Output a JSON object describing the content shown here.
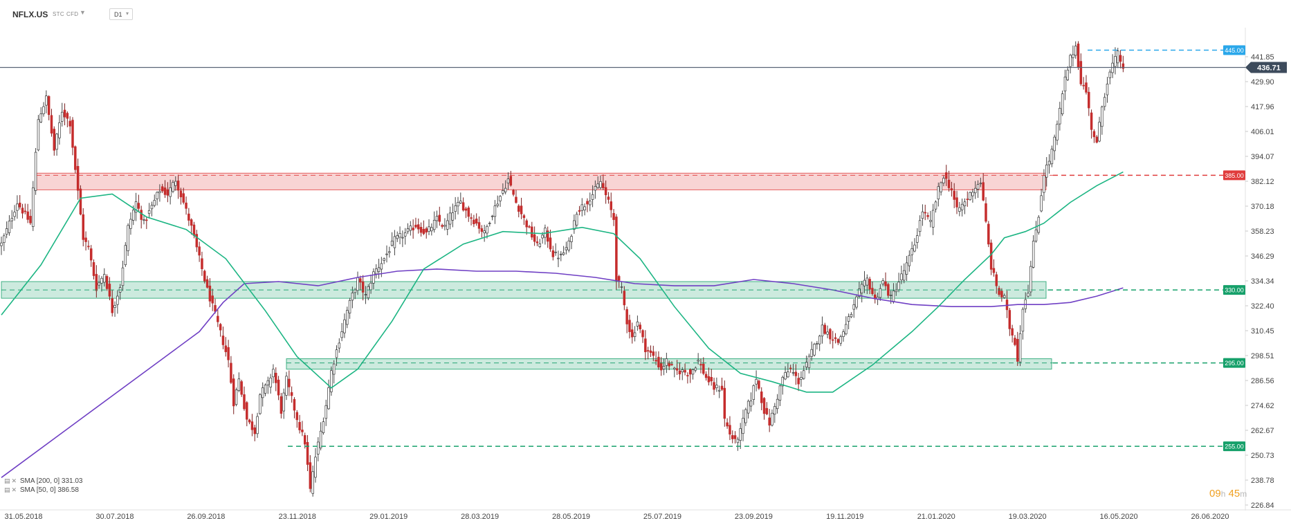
{
  "header": {
    "symbol": "NFLX.US",
    "type_label": "STC",
    "cfd_label": "CFD",
    "timeframe": "D1"
  },
  "legend": [
    {
      "label": "SMA [200, 0] 331.03",
      "color": "#6f3fc4"
    },
    {
      "label": "SMA [50, 0] 386.58",
      "color": "#1cb583"
    }
  ],
  "timer": {
    "hours": "09",
    "h_unit": "h",
    "minutes": "45",
    "m_unit": "m"
  },
  "chart_data": {
    "type": "candlestick",
    "instrument": "NFLX.US",
    "timeframe": "D1",
    "y_range": [
      226.84,
      453.79
    ],
    "y_ticks": [
      441.85,
      429.9,
      417.96,
      406.01,
      394.07,
      382.12,
      370.18,
      358.23,
      346.29,
      334.34,
      322.4,
      310.45,
      298.51,
      286.56,
      274.62,
      262.67,
      250.73,
      238.78,
      226.84
    ],
    "x_ticks": [
      "31.05.2018",
      "30.07.2018",
      "26.09.2018",
      "23.11.2018",
      "29.01.2019",
      "28.03.2019",
      "28.05.2019",
      "25.07.2019",
      "23.09.2019",
      "19.11.2019",
      "21.01.2020",
      "19.03.2020",
      "16.05.2020",
      "26.06.2020"
    ],
    "last_price": 436.71,
    "price_path": [
      [
        0,
        352
      ],
      [
        6,
        372
      ],
      [
        11,
        362
      ],
      [
        14,
        412
      ],
      [
        17,
        422
      ],
      [
        20,
        397
      ],
      [
        23,
        416
      ],
      [
        26,
        410
      ],
      [
        29,
        377
      ],
      [
        31,
        355
      ],
      [
        33,
        350
      ],
      [
        36,
        331
      ],
      [
        39,
        338
      ],
      [
        42,
        320
      ],
      [
        45,
        332
      ],
      [
        48,
        360
      ],
      [
        51,
        372
      ],
      [
        54,
        362
      ],
      [
        57,
        370
      ],
      [
        60,
        378
      ],
      [
        63,
        376
      ],
      [
        66,
        383
      ],
      [
        69,
        372
      ],
      [
        72,
        360
      ],
      [
        75,
        345
      ],
      [
        78,
        330
      ],
      [
        81,
        318
      ],
      [
        84,
        305
      ],
      [
        86,
        296
      ],
      [
        88,
        276
      ],
      [
        90,
        287
      ],
      [
        93,
        268
      ],
      [
        96,
        262
      ],
      [
        98,
        280
      ],
      [
        101,
        285
      ],
      [
        103,
        292
      ],
      [
        106,
        272
      ],
      [
        108,
        287
      ],
      [
        111,
        273
      ],
      [
        113,
        264
      ],
      [
        115,
        257
      ],
      [
        117,
        234
      ],
      [
        119,
        250
      ],
      [
        121,
        262
      ],
      [
        123,
        275
      ],
      [
        125,
        291
      ],
      [
        128,
        306
      ],
      [
        131,
        320
      ],
      [
        135,
        335
      ],
      [
        138,
        327
      ],
      [
        141,
        338
      ],
      [
        145,
        345
      ],
      [
        149,
        354
      ],
      [
        153,
        357
      ],
      [
        157,
        361
      ],
      [
        161,
        357
      ],
      [
        165,
        364
      ],
      [
        168,
        360
      ],
      [
        171,
        368
      ],
      [
        174,
        372
      ],
      [
        177,
        366
      ],
      [
        180,
        362
      ],
      [
        183,
        357
      ],
      [
        186,
        367
      ],
      [
        189,
        375
      ],
      [
        192,
        383
      ],
      [
        195,
        372
      ],
      [
        198,
        364
      ],
      [
        201,
        356
      ],
      [
        203,
        351
      ],
      [
        206,
        358
      ],
      [
        209,
        347
      ],
      [
        212,
        346
      ],
      [
        215,
        352
      ],
      [
        218,
        368
      ],
      [
        221,
        371
      ],
      [
        224,
        376
      ],
      [
        227,
        382
      ],
      [
        230,
        372
      ],
      [
        232,
        364
      ],
      [
        233,
        336
      ],
      [
        235,
        330
      ],
      [
        237,
        315
      ],
      [
        239,
        307
      ],
      [
        241,
        315
      ],
      [
        244,
        302
      ],
      [
        247,
        298
      ],
      [
        250,
        292
      ],
      [
        252,
        296
      ],
      [
        255,
        291
      ],
      [
        258,
        291
      ],
      [
        261,
        290
      ],
      [
        264,
        296
      ],
      [
        267,
        288
      ],
      [
        270,
        283
      ],
      [
        273,
        283
      ],
      [
        274,
        268
      ],
      [
        276,
        261
      ],
      [
        278,
        257
      ],
      [
        280,
        262
      ],
      [
        282,
        272
      ],
      [
        284,
        278
      ],
      [
        286,
        288
      ],
      [
        289,
        272
      ],
      [
        291,
        266
      ],
      [
        293,
        274
      ],
      [
        296,
        288
      ],
      [
        299,
        292
      ],
      [
        302,
        286
      ],
      [
        305,
        294
      ],
      [
        308,
        303
      ],
      [
        311,
        312
      ],
      [
        314,
        308
      ],
      [
        317,
        305
      ],
      [
        320,
        313
      ],
      [
        323,
        322
      ],
      [
        325,
        329
      ],
      [
        328,
        335
      ],
      [
        331,
        325
      ],
      [
        334,
        334
      ],
      [
        337,
        326
      ],
      [
        340,
        334
      ],
      [
        343,
        342
      ],
      [
        346,
        352
      ],
      [
        349,
        368
      ],
      [
        352,
        362
      ],
      [
        355,
        378
      ],
      [
        357,
        385
      ],
      [
        360,
        378
      ],
      [
        362,
        368
      ],
      [
        365,
        372
      ],
      [
        368,
        378
      ],
      [
        371,
        382
      ],
      [
        373,
        362
      ],
      [
        375,
        341
      ],
      [
        378,
        328
      ],
      [
        380,
        326
      ],
      [
        382,
        312
      ],
      [
        384,
        305
      ],
      [
        385,
        297
      ],
      [
        387,
        322
      ],
      [
        389,
        330
      ],
      [
        391,
        352
      ],
      [
        393,
        366
      ],
      [
        395,
        386
      ],
      [
        397,
        392
      ],
      [
        399,
        402
      ],
      [
        401,
        416
      ],
      [
        403,
        431
      ],
      [
        405,
        441
      ],
      [
        407,
        447
      ],
      [
        409,
        430
      ],
      [
        411,
        425
      ],
      [
        413,
        408
      ],
      [
        415,
        400
      ],
      [
        417,
        418
      ],
      [
        419,
        430
      ],
      [
        421,
        438
      ],
      [
        423,
        443
      ],
      [
        425,
        437
      ]
    ],
    "series": [
      {
        "name": "SMA [200, 0]",
        "value": 331.03,
        "color": "#6f3fc4",
        "points": [
          [
            0,
            240
          ],
          [
            30,
            268
          ],
          [
            60,
            296
          ],
          [
            75,
            310
          ],
          [
            84,
            324
          ],
          [
            92,
            333
          ],
          [
            105,
            334
          ],
          [
            120,
            332
          ],
          [
            135,
            336
          ],
          [
            150,
            339
          ],
          [
            165,
            340
          ],
          [
            180,
            339
          ],
          [
            195,
            339
          ],
          [
            210,
            338
          ],
          [
            225,
            336
          ],
          [
            240,
            333
          ],
          [
            255,
            332
          ],
          [
            270,
            332
          ],
          [
            285,
            335
          ],
          [
            300,
            333
          ],
          [
            315,
            330
          ],
          [
            330,
            326
          ],
          [
            345,
            323
          ],
          [
            360,
            322
          ],
          [
            375,
            322
          ],
          [
            385,
            323
          ],
          [
            395,
            323
          ],
          [
            405,
            324
          ],
          [
            415,
            327
          ],
          [
            425,
            331
          ]
        ]
      },
      {
        "name": "SMA [50, 0]",
        "value": 386.58,
        "color": "#1cb583",
        "points": [
          [
            0,
            318
          ],
          [
            15,
            342
          ],
          [
            30,
            374
          ],
          [
            42,
            376
          ],
          [
            55,
            365
          ],
          [
            70,
            359
          ],
          [
            85,
            345
          ],
          [
            100,
            320
          ],
          [
            112,
            298
          ],
          [
            125,
            283
          ],
          [
            135,
            292
          ],
          [
            148,
            315
          ],
          [
            160,
            340
          ],
          [
            175,
            352
          ],
          [
            190,
            358
          ],
          [
            205,
            357
          ],
          [
            220,
            360
          ],
          [
            232,
            357
          ],
          [
            242,
            345
          ],
          [
            255,
            322
          ],
          [
            268,
            302
          ],
          [
            280,
            290
          ],
          [
            292,
            286
          ],
          [
            305,
            281
          ],
          [
            315,
            281
          ],
          [
            330,
            294
          ],
          [
            345,
            310
          ],
          [
            355,
            322
          ],
          [
            365,
            335
          ],
          [
            375,
            347
          ],
          [
            380,
            355
          ],
          [
            388,
            358
          ],
          [
            395,
            362
          ],
          [
            405,
            372
          ],
          [
            415,
            380
          ],
          [
            425,
            386.58
          ]
        ]
      }
    ],
    "levels": [
      {
        "price": 445,
        "label": "445.00",
        "color": "#2aa7ea",
        "zone": false
      },
      {
        "price": 385,
        "label": "385.00",
        "color": "#e03c3c",
        "zone": true,
        "zone_range": [
          378,
          386
        ]
      },
      {
        "price": 330,
        "label": "330.00",
        "color": "#16a06a",
        "zone": true,
        "zone_range": [
          326,
          334
        ]
      },
      {
        "price": 295,
        "label": "295.00",
        "color": "#16a06a",
        "zone": true,
        "zone_range": [
          292,
          297
        ]
      },
      {
        "price": 255,
        "label": "255.00",
        "color": "#16a06a",
        "zone": false
      }
    ],
    "grid": false,
    "legend_position": "bottom-left"
  }
}
